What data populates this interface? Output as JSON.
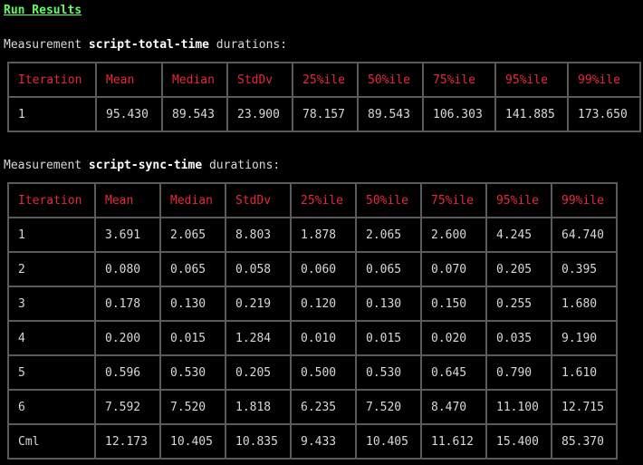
{
  "title": "Run Results",
  "measurements": [
    {
      "prefix": "Measurement ",
      "name": "script-total-time",
      "suffix": " durations:",
      "headers": [
        "Iteration",
        "Mean",
        "Median",
        "StdDv",
        "25%ile",
        "50%ile",
        "75%ile",
        "95%ile",
        "99%ile"
      ],
      "rows": [
        [
          "1",
          "95.430",
          "89.543",
          "23.900",
          "78.157",
          "89.543",
          "106.303",
          "141.885",
          "173.650"
        ]
      ]
    },
    {
      "prefix": "Measurement ",
      "name": "script-sync-time",
      "suffix": " durations:",
      "headers": [
        "Iteration",
        "Mean",
        "Median",
        "StdDv",
        "25%ile",
        "50%ile",
        "75%ile",
        "95%ile",
        "99%ile"
      ],
      "rows": [
        [
          "1",
          "3.691",
          "2.065",
          "8.803",
          "1.878",
          "2.065",
          "2.600",
          "4.245",
          "64.740"
        ],
        [
          "2",
          "0.080",
          "0.065",
          "0.058",
          "0.060",
          "0.065",
          "0.070",
          "0.205",
          "0.395"
        ],
        [
          "3",
          "0.178",
          "0.130",
          "0.219",
          "0.120",
          "0.130",
          "0.150",
          "0.255",
          "1.680"
        ],
        [
          "4",
          "0.200",
          "0.015",
          "1.284",
          "0.010",
          "0.015",
          "0.020",
          "0.035",
          "9.190"
        ],
        [
          "5",
          "0.596",
          "0.530",
          "0.205",
          "0.500",
          "0.530",
          "0.645",
          "0.790",
          "1.610"
        ],
        [
          "6",
          "7.592",
          "7.520",
          "1.818",
          "6.235",
          "7.520",
          "8.470",
          "11.100",
          "12.715"
        ],
        [
          "Cml",
          "12.173",
          "10.405",
          "10.835",
          "9.433",
          "10.405",
          "11.612",
          "15.400",
          "85.370"
        ]
      ]
    }
  ]
}
